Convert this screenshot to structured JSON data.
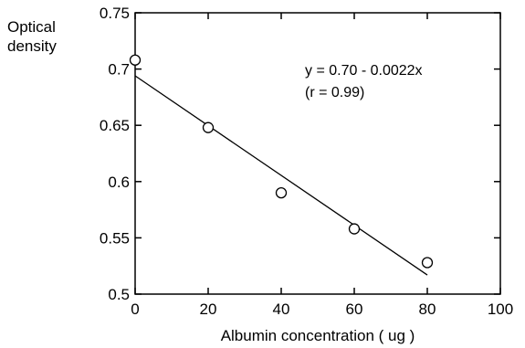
{
  "chart_data": {
    "type": "scatter",
    "ylabel_lines": [
      "Optical",
      "density"
    ],
    "xlabel": "Albumin concentration ( ug )",
    "xlim": [
      0,
      100
    ],
    "ylim": [
      0.5,
      0.75
    ],
    "x_ticks": [
      0,
      20,
      40,
      60,
      80,
      100
    ],
    "x_tick_labels": [
      "0",
      "20",
      "40",
      "60",
      "80",
      "100"
    ],
    "y_ticks": [
      0.5,
      0.55,
      0.6,
      0.65,
      0.7,
      0.75
    ],
    "y_tick_labels": [
      "0.5",
      "0.55",
      "0.6",
      "0.65",
      "0.7",
      "0.75"
    ],
    "points": [
      {
        "x": 0,
        "y": 0.708
      },
      {
        "x": 20,
        "y": 0.648
      },
      {
        "x": 40,
        "y": 0.59
      },
      {
        "x": 60,
        "y": 0.558
      },
      {
        "x": 80,
        "y": 0.528
      }
    ],
    "fit_line": {
      "x_start": 0,
      "y_start": 0.694,
      "x_end": 80,
      "y_end": 0.517
    },
    "annotations": [
      "y = 0.70 - 0.0022x",
      "(r = 0.99)"
    ],
    "grid": false
  },
  "colors": {
    "ink": "#000000",
    "background": "#ffffff"
  }
}
